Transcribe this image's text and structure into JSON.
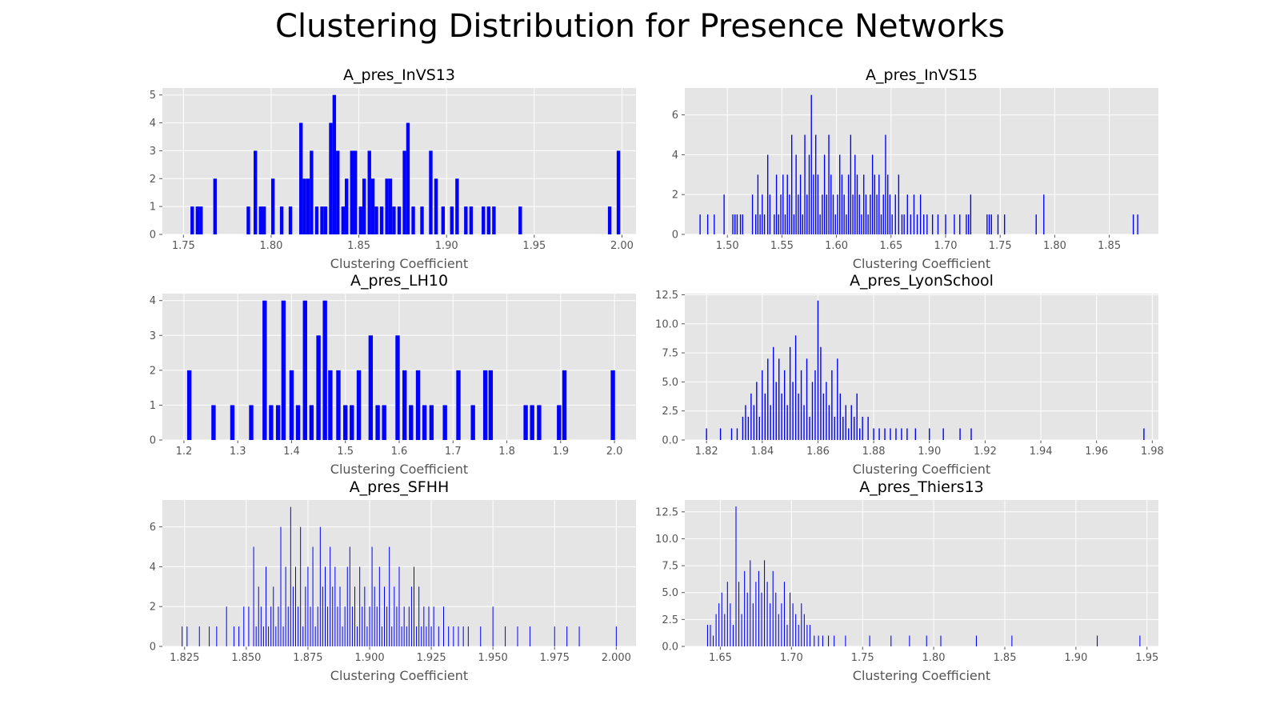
{
  "title": "Clustering Distribution for Presence Networks",
  "colors": {
    "bar": "#0000ff",
    "panel_bg": "#e5e5e5",
    "grid": "#ffffff",
    "tick_text": "#555555",
    "label_text": "#555555"
  },
  "chart_data": [
    {
      "type": "bar",
      "title": "A_pres_InVS13",
      "xlabel": "Clustering Coefficient",
      "xlim": [
        1.738,
        2.008
      ],
      "ylim": [
        0,
        5.25
      ],
      "xticks": [
        1.75,
        1.8,
        1.85,
        1.9,
        1.95,
        2.0
      ],
      "xtick_labels": [
        "1.75",
        "1.80",
        "1.85",
        "1.90",
        "1.95",
        "2.00"
      ],
      "yticks": [
        0,
        1,
        2,
        3,
        4,
        5
      ],
      "ytick_labels": [
        "0",
        "1",
        "2",
        "3",
        "4",
        "5"
      ],
      "bar_width": 0.002,
      "x": [
        1.755,
        1.758,
        1.76,
        1.768,
        1.787,
        1.791,
        1.794,
        1.796,
        1.801,
        1.806,
        1.811,
        1.817,
        1.819,
        1.821,
        1.823,
        1.826,
        1.829,
        1.831,
        1.834,
        1.836,
        1.838,
        1.841,
        1.843,
        1.846,
        1.848,
        1.851,
        1.853,
        1.856,
        1.858,
        1.86,
        1.863,
        1.866,
        1.868,
        1.87,
        1.873,
        1.876,
        1.878,
        1.881,
        1.886,
        1.891,
        1.894,
        1.898,
        1.903,
        1.906,
        1.911,
        1.914,
        1.921,
        1.924,
        1.927,
        1.942,
        1.993,
        1.998
      ],
      "values": [
        1,
        1,
        1,
        2,
        1,
        3,
        1,
        1,
        2,
        1,
        1,
        4,
        2,
        2,
        3,
        1,
        1,
        1,
        4,
        5,
        3,
        1,
        2,
        3,
        3,
        1,
        2,
        3,
        2,
        1,
        1,
        2,
        2,
        1,
        1,
        3,
        4,
        1,
        1,
        3,
        2,
        1,
        1,
        2,
        1,
        1,
        1,
        1,
        1,
        1,
        1,
        3
      ]
    },
    {
      "type": "bar",
      "title": "A_pres_InVS15",
      "xlabel": "Clustering Coefficient",
      "xlim": [
        1.461,
        1.895
      ],
      "ylim": [
        0,
        7.35
      ],
      "xticks": [
        1.5,
        1.55,
        1.6,
        1.65,
        1.7,
        1.75,
        1.8,
        1.85
      ],
      "xtick_labels": [
        "1.50",
        "1.55",
        "1.60",
        "1.65",
        "1.70",
        "1.75",
        "1.80",
        "1.85"
      ],
      "yticks": [
        0,
        2,
        4,
        6
      ],
      "ytick_labels": [
        "0",
        "2",
        "4",
        "6"
      ],
      "bar_width": 0.001,
      "x": [
        1.475,
        1.482,
        1.488,
        1.497,
        1.505,
        1.507,
        1.509,
        1.512,
        1.514,
        1.523,
        1.526,
        1.528,
        1.53,
        1.532,
        1.534,
        1.537,
        1.539,
        1.543,
        1.545,
        1.547,
        1.549,
        1.551,
        1.553,
        1.555,
        1.557,
        1.559,
        1.561,
        1.563,
        1.565,
        1.567,
        1.569,
        1.571,
        1.573,
        1.575,
        1.577,
        1.579,
        1.581,
        1.583,
        1.585,
        1.587,
        1.589,
        1.591,
        1.593,
        1.595,
        1.597,
        1.599,
        1.601,
        1.603,
        1.605,
        1.607,
        1.609,
        1.611,
        1.613,
        1.615,
        1.617,
        1.619,
        1.621,
        1.623,
        1.625,
        1.627,
        1.629,
        1.631,
        1.633,
        1.635,
        1.637,
        1.639,
        1.641,
        1.643,
        1.645,
        1.647,
        1.649,
        1.651,
        1.654,
        1.657,
        1.66,
        1.662,
        1.665,
        1.668,
        1.671,
        1.674,
        1.677,
        1.68,
        1.683,
        1.688,
        1.693,
        1.7,
        1.708,
        1.713,
        1.719,
        1.721,
        1.723,
        1.738,
        1.74,
        1.742,
        1.748,
        1.754,
        1.783,
        1.79,
        1.872,
        1.876
      ],
      "values": [
        1,
        1,
        1,
        2,
        1,
        1,
        1,
        1,
        1,
        2,
        1,
        3,
        1,
        2,
        1,
        4,
        2,
        1,
        3,
        1,
        2,
        3,
        1,
        3,
        2,
        5,
        1,
        4,
        2,
        3,
        1,
        5,
        2,
        4,
        7,
        3,
        5,
        3,
        1,
        2,
        4,
        2,
        5,
        3,
        2,
        1,
        2,
        4,
        3,
        2,
        1,
        3,
        5,
        2,
        4,
        3,
        2,
        1,
        3,
        2,
        1,
        2,
        4,
        3,
        2,
        3,
        1,
        2,
        5,
        3,
        2,
        1,
        2,
        3,
        1,
        1,
        2,
        1,
        2,
        1,
        2,
        1,
        1,
        1,
        1,
        1,
        1,
        1,
        1,
        1,
        2,
        1,
        1,
        1,
        1,
        1,
        1,
        2,
        1,
        1
      ],
      "xlabel_note": ""
    },
    {
      "type": "bar",
      "title": "A_pres_LH10",
      "xlabel": "Clustering Coefficient",
      "xlim": [
        1.16,
        2.04
      ],
      "ylim": [
        0,
        4.2
      ],
      "xticks": [
        1.2,
        1.3,
        1.4,
        1.5,
        1.6,
        1.7,
        1.8,
        1.9,
        2.0
      ],
      "xtick_labels": [
        "1.2",
        "1.3",
        "1.4",
        "1.5",
        "1.6",
        "1.7",
        "1.8",
        "1.9",
        "2.0"
      ],
      "yticks": [
        0,
        1,
        2,
        3,
        4
      ],
      "ytick_labels": [
        "0",
        "1",
        "2",
        "3",
        "4"
      ],
      "bar_width": 0.008,
      "x": [
        1.21,
        1.255,
        1.29,
        1.325,
        1.35,
        1.362,
        1.375,
        1.385,
        1.4,
        1.412,
        1.425,
        1.437,
        1.45,
        1.462,
        1.472,
        1.487,
        1.5,
        1.512,
        1.525,
        1.547,
        1.56,
        1.572,
        1.597,
        1.61,
        1.622,
        1.635,
        1.647,
        1.66,
        1.685,
        1.71,
        1.737,
        1.76,
        1.77,
        1.835,
        1.847,
        1.86,
        1.897,
        1.907,
        1.997
      ],
      "values": [
        2,
        1,
        1,
        1,
        4,
        1,
        1,
        4,
        2,
        1,
        4,
        1,
        3,
        4,
        2,
        2,
        1,
        1,
        2,
        3,
        1,
        1,
        3,
        2,
        1,
        2,
        1,
        1,
        1,
        2,
        1,
        2,
        2,
        1,
        1,
        1,
        1,
        2,
        2
      ]
    },
    {
      "type": "bar",
      "title": "A_pres_LyonSchool",
      "xlabel": "Clustering Coefficient",
      "xlim": [
        1.8122,
        1.9822
      ],
      "ylim": [
        0,
        12.6
      ],
      "xticks": [
        1.82,
        1.84,
        1.86,
        1.88,
        1.9,
        1.92,
        1.94,
        1.96,
        1.98
      ],
      "xtick_labels": [
        "1.82",
        "1.84",
        "1.86",
        "1.88",
        "1.90",
        "1.92",
        "1.94",
        "1.96",
        "1.98"
      ],
      "yticks": [
        0,
        2.5,
        5.0,
        7.5,
        10.0,
        12.5
      ],
      "ytick_labels": [
        "0.0",
        "2.5",
        "5.0",
        "7.5",
        "10.0",
        "12.5"
      ],
      "bar_width": 0.0004,
      "x": [
        1.82,
        1.825,
        1.829,
        1.831,
        1.833,
        1.834,
        1.835,
        1.836,
        1.837,
        1.838,
        1.839,
        1.84,
        1.841,
        1.842,
        1.843,
        1.844,
        1.845,
        1.846,
        1.847,
        1.848,
        1.849,
        1.85,
        1.851,
        1.852,
        1.853,
        1.854,
        1.855,
        1.856,
        1.857,
        1.858,
        1.859,
        1.86,
        1.861,
        1.862,
        1.863,
        1.864,
        1.865,
        1.866,
        1.867,
        1.868,
        1.869,
        1.87,
        1.871,
        1.872,
        1.873,
        1.874,
        1.875,
        1.876,
        1.878,
        1.88,
        1.882,
        1.884,
        1.886,
        1.888,
        1.89,
        1.892,
        1.895,
        1.9,
        1.905,
        1.911,
        1.915,
        1.977
      ],
      "values": [
        1,
        1,
        1,
        1,
        2,
        3,
        2,
        4,
        3,
        5,
        2,
        6,
        4,
        7,
        3,
        8,
        5,
        7,
        4,
        6,
        3,
        8,
        5,
        9,
        4,
        6,
        3,
        7,
        2,
        5,
        6,
        12,
        8,
        4,
        5,
        3,
        6,
        2,
        7,
        4,
        2,
        3,
        1,
        3,
        2,
        4,
        1,
        2,
        2,
        1,
        1,
        1,
        1,
        1,
        1,
        1,
        1,
        1,
        1,
        1,
        1,
        1
      ]
    },
    {
      "type": "bar",
      "title": "A_pres_SFHH",
      "xlabel": "Clustering Coefficient",
      "xlim": [
        1.816,
        2.008
      ],
      "ylim": [
        0,
        7.35
      ],
      "xticks": [
        1.825,
        1.85,
        1.875,
        1.9,
        1.925,
        1.95,
        1.975,
        2.0
      ],
      "xtick_labels": [
        "1.825",
        "1.850",
        "1.875",
        "1.900",
        "1.925",
        "1.950",
        "1.975",
        "2.000"
      ],
      "yticks": [
        0,
        2,
        4,
        6
      ],
      "ytick_labels": [
        "0",
        "2",
        "4",
        "6"
      ],
      "bar_width": 0.0003,
      "x": [
        1.824,
        1.826,
        1.831,
        1.835,
        1.838,
        1.842,
        1.845,
        1.847,
        1.849,
        1.851,
        1.853,
        1.854,
        1.855,
        1.856,
        1.857,
        1.858,
        1.859,
        1.86,
        1.861,
        1.862,
        1.863,
        1.864,
        1.865,
        1.866,
        1.867,
        1.868,
        1.869,
        1.87,
        1.871,
        1.872,
        1.873,
        1.874,
        1.875,
        1.876,
        1.877,
        1.878,
        1.879,
        1.88,
        1.881,
        1.882,
        1.883,
        1.884,
        1.885,
        1.886,
        1.887,
        1.888,
        1.889,
        1.89,
        1.891,
        1.892,
        1.893,
        1.894,
        1.895,
        1.896,
        1.897,
        1.898,
        1.899,
        1.9,
        1.901,
        1.902,
        1.903,
        1.904,
        1.905,
        1.906,
        1.907,
        1.908,
        1.909,
        1.91,
        1.911,
        1.912,
        1.913,
        1.914,
        1.915,
        1.916,
        1.917,
        1.918,
        1.919,
        1.92,
        1.921,
        1.922,
        1.923,
        1.924,
        1.925,
        1.926,
        1.928,
        1.93,
        1.932,
        1.934,
        1.936,
        1.938,
        1.94,
        1.945,
        1.95,
        1.955,
        1.96,
        1.965,
        1.975,
        1.98,
        1.985,
        2.0
      ],
      "values": [
        1,
        1,
        1,
        1,
        1,
        2,
        1,
        1,
        2,
        2,
        5,
        1,
        3,
        2,
        1,
        4,
        1,
        2,
        3,
        1,
        2,
        6,
        1,
        4,
        2,
        7,
        3,
        4,
        2,
        6,
        1,
        3,
        4,
        2,
        5,
        1,
        2,
        6,
        3,
        4,
        2,
        5,
        3,
        4,
        2,
        3,
        1,
        2,
        4,
        5,
        2,
        3,
        1,
        4,
        2,
        3,
        1,
        2,
        5,
        3,
        2,
        4,
        1,
        3,
        2,
        5,
        1,
        3,
        2,
        4,
        1,
        2,
        1,
        2,
        3,
        4,
        1,
        3,
        1,
        2,
        1,
        2,
        1,
        2,
        1,
        2,
        1,
        1,
        1,
        1,
        1,
        1,
        2,
        1,
        1,
        1,
        1,
        1,
        1,
        1
      ]
    },
    {
      "type": "bar",
      "title": "A_pres_Thiers13",
      "xlabel": "Clustering Coefficient",
      "xlim": [
        1.625,
        1.958
      ],
      "ylim": [
        0,
        13.6
      ],
      "xticks": [
        1.65,
        1.7,
        1.75,
        1.8,
        1.85,
        1.9,
        1.95
      ],
      "xtick_labels": [
        "1.65",
        "1.70",
        "1.75",
        "1.80",
        "1.85",
        "1.90",
        "1.95"
      ],
      "yticks": [
        0,
        2.5,
        5.0,
        7.5,
        10.0,
        12.5
      ],
      "ytick_labels": [
        "0.0",
        "2.5",
        "5.0",
        "7.5",
        "10.0",
        "12.5"
      ],
      "bar_width": 0.0006,
      "x": [
        1.641,
        1.643,
        1.645,
        1.647,
        1.649,
        1.651,
        1.653,
        1.655,
        1.657,
        1.659,
        1.661,
        1.663,
        1.665,
        1.667,
        1.669,
        1.671,
        1.673,
        1.675,
        1.677,
        1.679,
        1.681,
        1.683,
        1.685,
        1.687,
        1.689,
        1.691,
        1.693,
        1.695,
        1.697,
        1.699,
        1.701,
        1.703,
        1.705,
        1.707,
        1.709,
        1.711,
        1.713,
        1.716,
        1.719,
        1.722,
        1.726,
        1.73,
        1.738,
        1.755,
        1.77,
        1.783,
        1.795,
        1.805,
        1.83,
        1.855,
        1.915,
        1.945
      ],
      "values": [
        2,
        2,
        1,
        3,
        4,
        5,
        3,
        6,
        4,
        2,
        13,
        6,
        3,
        7,
        5,
        8,
        4,
        6,
        7,
        5,
        8,
        6,
        4,
        7,
        5,
        3,
        4,
        6,
        2,
        5,
        4,
        3,
        2,
        4,
        3,
        2,
        2,
        1,
        1,
        1,
        1,
        1,
        1,
        1,
        1,
        1,
        1,
        1,
        1,
        1,
        1,
        1
      ]
    }
  ]
}
